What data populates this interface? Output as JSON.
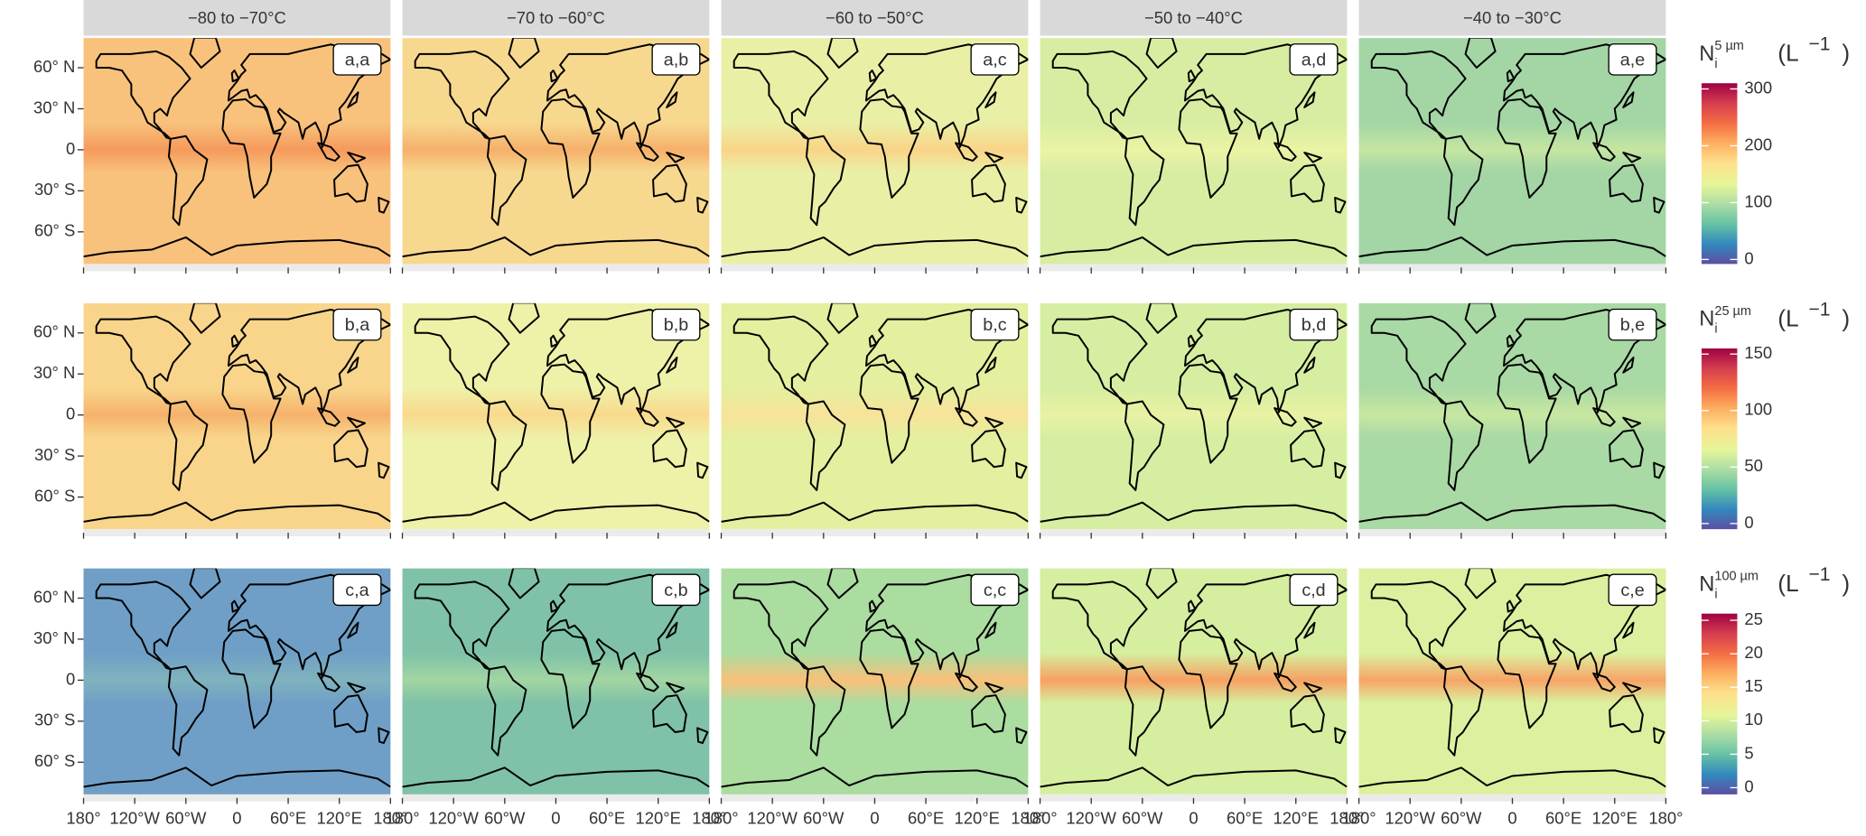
{
  "column_headers": [
    "−80 to −70°C",
    "−70 to −60°C",
    "−60 to −50°C",
    "−50 to −40°C",
    "−40 to −30°C"
  ],
  "x_axis": {
    "lim": [
      -180,
      180
    ],
    "ticks": [
      {
        "value": -180,
        "label": "180°"
      },
      {
        "value": -120,
        "label": "120°W"
      },
      {
        "value": -60,
        "label": "60°W"
      },
      0,
      {
        "value": 60,
        "label": "60°E"
      },
      {
        "value": 120,
        "label": "120°E"
      },
      {
        "value": 180,
        "label": "180°"
      }
    ]
  },
  "y_axis": {
    "lim": [
      -83.5,
      81.7
    ],
    "ticks": [
      {
        "value": 60,
        "label": "60° N"
      },
      {
        "value": 30,
        "label": "30° N"
      },
      0,
      {
        "value": -30,
        "label": "30° S"
      },
      {
        "value": -60,
        "label": "60° S"
      }
    ]
  },
  "rows": [
    {
      "panel_labels": [
        "a,a",
        "a,b",
        "a,c",
        "a,d",
        "a,e"
      ],
      "legend": {
        "symbol": "N",
        "subscript": "i",
        "superscript": "5 µm",
        "unit": "(L",
        "unit_exponent": "−1",
        "unit_close": ")",
        "lim": [
          -8,
          310
        ],
        "ticks": [
          0,
          100,
          200,
          300
        ]
      }
    },
    {
      "panel_labels": [
        "b,a",
        "b,b",
        "b,c",
        "b,d",
        "b,e"
      ],
      "legend": {
        "symbol": "N",
        "subscript": "i",
        "superscript": "25 µm",
        "unit": "(L",
        "unit_exponent": "−1",
        "unit_close": ")",
        "lim": [
          -5,
          155
        ],
        "ticks": [
          0,
          50,
          100,
          150
        ]
      }
    },
    {
      "panel_labels": [
        "c,a",
        "c,b",
        "c,c",
        "c,d",
        "c,e"
      ],
      "legend": {
        "symbol": "N",
        "subscript": "i",
        "superscript": "100 µm",
        "unit": "(L",
        "unit_exponent": "−1",
        "unit_close": ")",
        "lim": [
          -1,
          26
        ],
        "ticks": [
          0,
          5,
          10,
          15,
          20,
          25
        ]
      }
    }
  ]
}
